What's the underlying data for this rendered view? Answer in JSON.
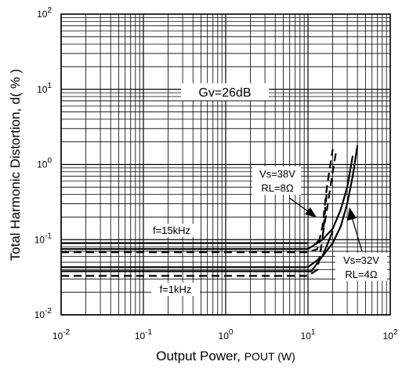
{
  "chart_data": {
    "type": "line",
    "xscale": "log",
    "yscale": "log",
    "xlim": [
      0.01,
      100
    ],
    "ylim": [
      0.01,
      100
    ],
    "grid": true,
    "xlabel": "Output Power, POUT (W)",
    "ylabel": "Total Harmonic Distortion, d( % )",
    "xlabel_main": "Output Power, ",
    "xlabel_sub": "POUT (W)",
    "xticks": [
      {
        "base": "10",
        "exp": "-2",
        "value": 0.01
      },
      {
        "base": "10",
        "exp": "-1",
        "value": 0.1
      },
      {
        "base": "10",
        "exp": "0",
        "value": 1
      },
      {
        "base": "10",
        "exp": "1",
        "value": 10
      },
      {
        "base": "10",
        "exp": "2",
        "value": 100
      }
    ],
    "yticks": [
      {
        "base": "10",
        "exp": "2",
        "value": 100
      },
      {
        "base": "10",
        "exp": "1",
        "value": 10
      },
      {
        "base": "10",
        "exp": "0",
        "value": 1
      },
      {
        "base": "10",
        "exp": "-1",
        "value": 0.1
      },
      {
        "base": "10",
        "exp": "-2",
        "value": 0.01
      }
    ],
    "annotations": {
      "gain": "Gv=26dB",
      "f_high": "f=15kHz",
      "f_low": "f=1kHz",
      "vs38_line1": "Vs=38V",
      "vs38_line2": "RL=8Ω",
      "vs32_line1": "Vs=32V",
      "vs32_line2": "RL=4Ω"
    },
    "series": [
      {
        "style": "dashed",
        "x": [
          0.01,
          10,
          13,
          15,
          17,
          20
        ],
        "y": [
          0.068,
          0.068,
          0.075,
          0.15,
          0.5,
          1.6
        ]
      },
      {
        "style": "dashed",
        "x": [
          0.01,
          10,
          13,
          15,
          17
        ],
        "y": [
          0.033,
          0.033,
          0.04,
          0.1,
          0.45
        ]
      },
      {
        "style": "dashed",
        "x": [
          12,
          15,
          17,
          20,
          22
        ],
        "y": [
          0.085,
          0.11,
          0.25,
          0.8,
          1.5
        ]
      },
      {
        "style": "solid",
        "x": [
          0.01,
          10,
          15,
          20,
          25,
          30,
          35,
          40
        ],
        "y": [
          0.043,
          0.043,
          0.06,
          0.09,
          0.15,
          0.3,
          0.7,
          1.8
        ]
      },
      {
        "style": "solid",
        "x": [
          0.01,
          10,
          15,
          20,
          25,
          30,
          35
        ],
        "y": [
          0.075,
          0.075,
          0.1,
          0.14,
          0.25,
          0.5,
          1.3
        ]
      },
      {
        "style": "solid",
        "x": [
          0.01,
          10
        ],
        "y": [
          0.09,
          0.09
        ]
      },
      {
        "style": "solid",
        "x": [
          0.01,
          11,
          15,
          20
        ],
        "y": [
          0.038,
          0.038,
          0.06,
          0.13
        ]
      }
    ]
  }
}
